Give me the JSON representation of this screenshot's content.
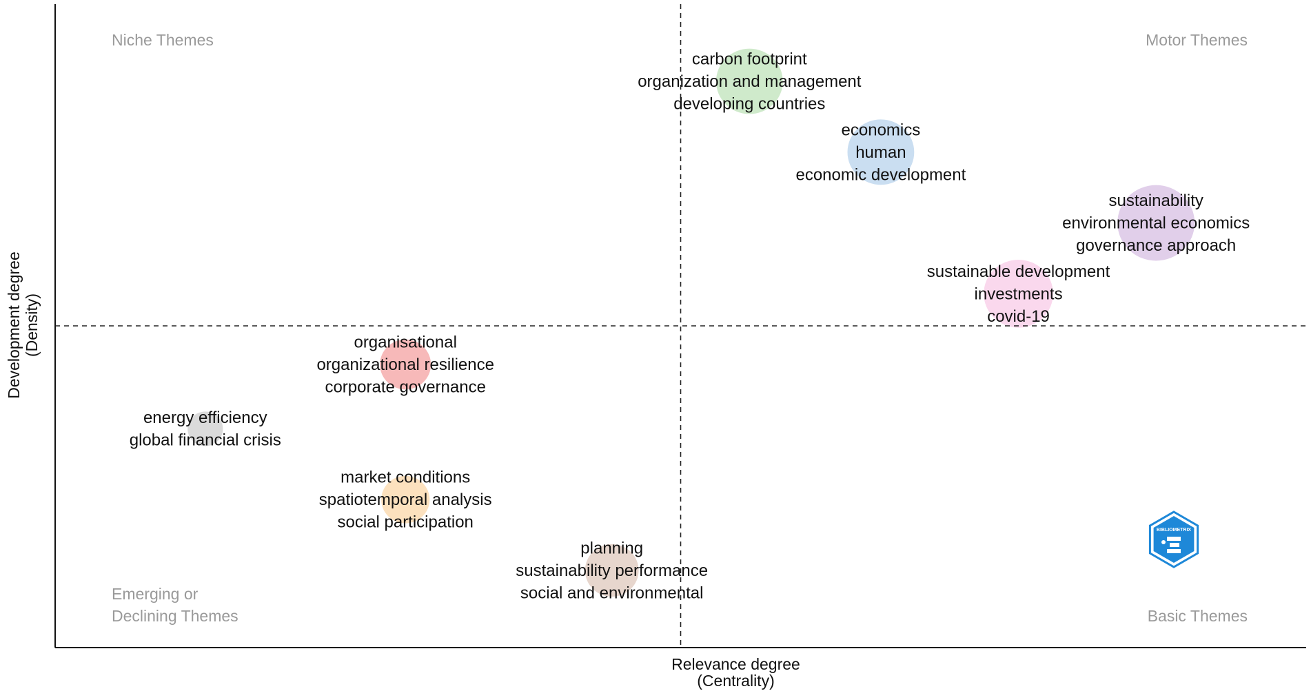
{
  "chart_data": {
    "type": "scatter",
    "title": "",
    "xlabel": [
      "Relevance degree",
      "(Centrality)"
    ],
    "ylabel": [
      "Development degree",
      "(Density)"
    ],
    "x_tick_labels_shown": false,
    "y_tick_labels_shown": false,
    "grid": false,
    "xlim": [
      0,
      100
    ],
    "ylim": [
      0,
      100
    ],
    "reference_lines": {
      "x": 50,
      "y": 50,
      "style": "dashed"
    },
    "quadrant_labels": {
      "top_left": [
        "Niche Themes"
      ],
      "top_right": [
        "Motor Themes"
      ],
      "bottom_left": [
        "Emerging or",
        "Declining Themes"
      ],
      "bottom_right": [
        "Basic Themes"
      ]
    },
    "clusters": [
      {
        "words": [
          "carbon footprint",
          "organization and management",
          "developing countries"
        ],
        "x": 55.5,
        "y": 88,
        "size": 0.8,
        "color": "#a8d8a0"
      },
      {
        "words": [
          "economics",
          "human",
          "economic development"
        ],
        "x": 66,
        "y": 77,
        "size": 0.8,
        "color": "#9fc3e6"
      },
      {
        "words": [
          "sustainability",
          "environmental economics",
          "governance approach"
        ],
        "x": 88,
        "y": 66,
        "size": 1.0,
        "color": "#c9a8d8"
      },
      {
        "words": [
          "sustainable development",
          "investments",
          "covid-19"
        ],
        "x": 77,
        "y": 55,
        "size": 0.85,
        "color": "#f6b8de"
      },
      {
        "words": [
          "organisational",
          "organizational resilience",
          "corporate governance"
        ],
        "x": 28,
        "y": 44,
        "size": 0.5,
        "color": "#f08080"
      },
      {
        "words": [
          "energy efficiency",
          "global financial crisis"
        ],
        "x": 12,
        "y": 34,
        "size": 0.2,
        "color": "#bdbdbd"
      },
      {
        "words": [
          "market conditions",
          "spatiotemporal analysis",
          "social participation"
        ],
        "x": 28,
        "y": 23,
        "size": 0.45,
        "color": "#f9c889"
      },
      {
        "words": [
          "planning",
          "sustainability performance",
          "social and environmental"
        ],
        "x": 44.5,
        "y": 12,
        "size": 0.55,
        "color": "#d4b4a4"
      }
    ]
  },
  "watermark": {
    "text": "BIBLIOMETRIX",
    "color": "#1e88d8"
  }
}
